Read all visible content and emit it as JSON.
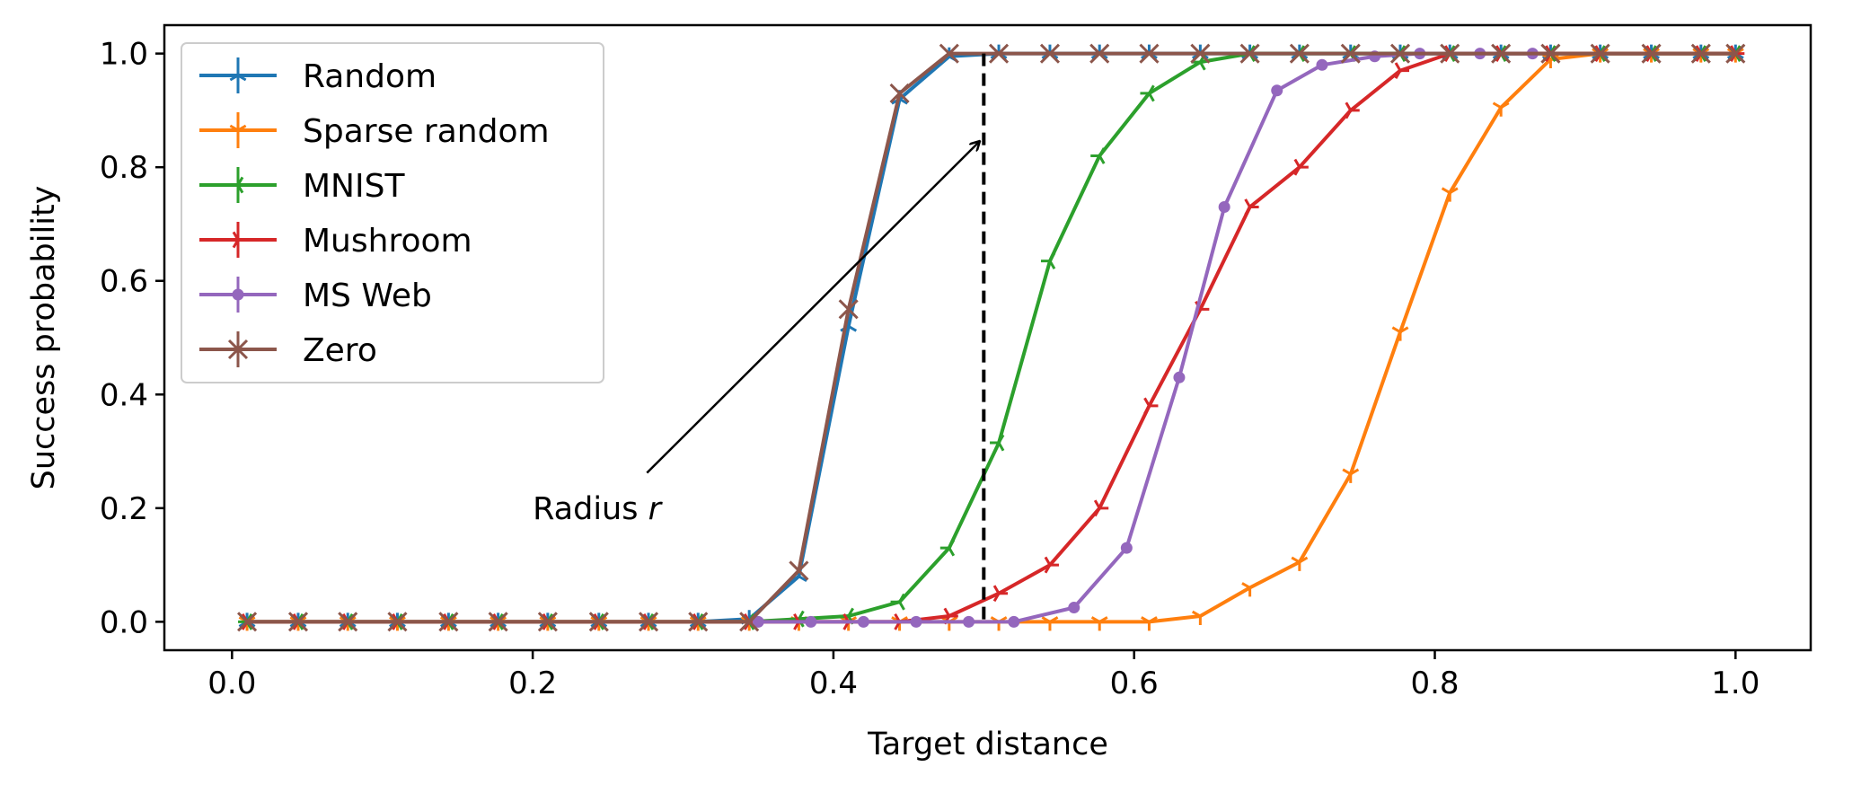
{
  "chart_data": {
    "type": "line",
    "title": "",
    "xlabel": "Target distance",
    "ylabel": "Success probability",
    "xlim": [
      -0.045,
      1.05
    ],
    "ylim": [
      -0.05,
      1.05
    ],
    "xticks": [
      "0.0",
      "0.2",
      "0.4",
      "0.6",
      "0.8",
      "1.0"
    ],
    "yticks": [
      "0.0",
      "0.2",
      "0.4",
      "0.6",
      "0.8",
      "1.0"
    ],
    "grid": false,
    "legend_position": "upper-left",
    "series": [
      {
        "name": "Random",
        "color": "#1f77b4",
        "marker": "tri_up",
        "x": [
          0.01,
          0.044,
          0.077,
          0.11,
          0.144,
          0.177,
          0.21,
          0.244,
          0.277,
          0.31,
          0.344,
          0.377,
          0.41,
          0.444,
          0.477,
          0.51,
          0.544,
          0.577,
          0.61,
          0.644,
          0.677,
          0.71,
          0.744,
          0.777,
          0.81,
          0.844,
          0.877,
          0.91,
          0.944,
          0.977,
          1.0
        ],
        "y": [
          0,
          0,
          0,
          0,
          0,
          0,
          0,
          0,
          0,
          0,
          0.005,
          0.08,
          0.52,
          0.92,
          0.995,
          1,
          1,
          1,
          1,
          1,
          1,
          1,
          1,
          1,
          1,
          1,
          1,
          1,
          1,
          1,
          1
        ]
      },
      {
        "name": "Sparse random",
        "color": "#ff7f0e",
        "marker": "tri_down",
        "x": [
          0.01,
          0.044,
          0.077,
          0.11,
          0.144,
          0.177,
          0.21,
          0.244,
          0.277,
          0.31,
          0.344,
          0.377,
          0.41,
          0.444,
          0.477,
          0.51,
          0.544,
          0.577,
          0.61,
          0.644,
          0.677,
          0.71,
          0.744,
          0.777,
          0.81,
          0.844,
          0.877,
          0.91,
          0.944,
          0.977,
          1.0
        ],
        "y": [
          0,
          0,
          0,
          0,
          0,
          0,
          0,
          0,
          0,
          0,
          0,
          0,
          0,
          0,
          0,
          0,
          0,
          0,
          0,
          0.01,
          0.06,
          0.105,
          0.26,
          0.51,
          0.755,
          0.905,
          0.99,
          1,
          1,
          1,
          1
        ]
      },
      {
        "name": "MNIST",
        "color": "#2ca02c",
        "marker": "tri_left",
        "x": [
          0.01,
          0.044,
          0.077,
          0.11,
          0.144,
          0.177,
          0.21,
          0.244,
          0.277,
          0.31,
          0.344,
          0.377,
          0.41,
          0.444,
          0.477,
          0.51,
          0.544,
          0.577,
          0.61,
          0.644,
          0.677,
          0.71,
          0.744,
          0.777,
          0.81,
          0.844,
          0.877,
          0.91,
          0.944,
          0.977,
          1.0
        ],
        "y": [
          0,
          0,
          0,
          0,
          0,
          0,
          0,
          0,
          0,
          0,
          0,
          0.005,
          0.01,
          0.035,
          0.13,
          0.315,
          0.635,
          0.82,
          0.93,
          0.985,
          1,
          1,
          1,
          1,
          1,
          1,
          1,
          1,
          1,
          1,
          1
        ]
      },
      {
        "name": "Mushroom",
        "color": "#d62728",
        "marker": "tri_right",
        "x": [
          0.01,
          0.044,
          0.077,
          0.11,
          0.144,
          0.177,
          0.21,
          0.244,
          0.277,
          0.31,
          0.344,
          0.377,
          0.41,
          0.444,
          0.477,
          0.51,
          0.544,
          0.577,
          0.61,
          0.644,
          0.677,
          0.71,
          0.744,
          0.777,
          0.81,
          0.844,
          0.877,
          0.91,
          0.944,
          0.977,
          1.0
        ],
        "y": [
          0,
          0,
          0,
          0,
          0,
          0,
          0,
          0,
          0,
          0,
          0,
          0,
          0,
          0,
          0.01,
          0.05,
          0.1,
          0.2,
          0.38,
          0.55,
          0.73,
          0.8,
          0.9,
          0.97,
          1,
          1,
          1,
          1,
          1,
          1,
          1
        ]
      },
      {
        "name": "MS Web",
        "color": "#9467bd",
        "marker": "point",
        "x": [
          0.35,
          0.385,
          0.42,
          0.455,
          0.49,
          0.52,
          0.56,
          0.595,
          0.63,
          0.66,
          0.695,
          0.725,
          0.76,
          0.79,
          0.83,
          0.865
        ],
        "y": [
          0,
          0,
          0,
          0,
          0,
          0,
          0.025,
          0.13,
          0.43,
          0.73,
          0.935,
          0.98,
          0.995,
          1,
          1,
          1
        ]
      },
      {
        "name": "Zero",
        "color": "#8c564b",
        "marker": "x",
        "x": [
          0.01,
          0.044,
          0.077,
          0.11,
          0.144,
          0.177,
          0.21,
          0.244,
          0.277,
          0.31,
          0.344,
          0.377,
          0.41,
          0.444,
          0.477,
          0.51,
          0.544,
          0.577,
          0.61,
          0.644,
          0.677,
          0.71,
          0.744,
          0.777,
          0.81,
          0.844,
          0.877,
          0.91,
          0.944,
          0.977,
          1.0
        ],
        "y": [
          0,
          0,
          0,
          0,
          0,
          0,
          0,
          0,
          0,
          0,
          0,
          0.09,
          0.55,
          0.93,
          1,
          1,
          1,
          1,
          1,
          1,
          1,
          1,
          1,
          1,
          1,
          1,
          1,
          1,
          1,
          1,
          1
        ]
      }
    ],
    "reference_line": {
      "x": 0.5,
      "y_from": 0,
      "y_to": 1,
      "style": "dashed",
      "color": "#000000"
    },
    "annotation": {
      "text": "Radius ",
      "symbol": "r",
      "text_at": [
        0.2,
        0.2
      ],
      "arrow_from": [
        0.27,
        0.27
      ],
      "arrow_to": [
        0.497,
        0.845
      ]
    }
  }
}
